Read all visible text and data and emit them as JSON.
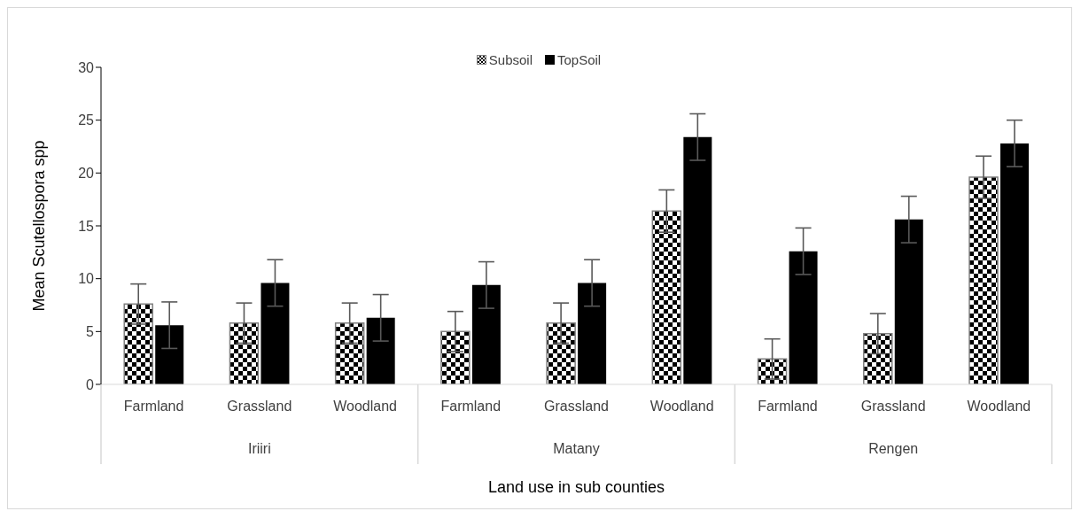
{
  "chart_data": {
    "type": "bar",
    "xlabel": "Land use in sub counties",
    "ylabel": "Mean Scutellospora spp",
    "categories": [
      "Farmland",
      "Grassland",
      "Woodland",
      "Farmland",
      "Grassland",
      "Woodland",
      "Farmland",
      "Grassland",
      "Woodland"
    ],
    "annotations": [
      "Iriiri",
      "Matany",
      "Rengen"
    ],
    "series": [
      {
        "name": "Subsoil",
        "color": "#808080",
        "values": [
          7.6,
          5.8,
          5.8,
          5.0,
          5.8,
          16.4,
          2.4,
          4.8,
          19.6
        ],
        "errors": [
          1.9,
          1.9,
          1.9,
          1.9,
          1.9,
          2.0,
          1.9,
          1.9,
          2.0
        ]
      },
      {
        "name": "TopSoil",
        "color": "#000000",
        "values": [
          5.6,
          9.6,
          6.3,
          9.4,
          9.6,
          23.4,
          12.6,
          15.6,
          22.8
        ],
        "errors": [
          2.2,
          2.2,
          2.2,
          2.2,
          2.2,
          2.2,
          2.2,
          2.2,
          2.2
        ]
      }
    ],
    "ylim": [
      0,
      30
    ],
    "yticks": [
      0,
      5,
      10,
      15,
      20,
      25,
      30
    ],
    "grid": false,
    "legend": "top"
  }
}
